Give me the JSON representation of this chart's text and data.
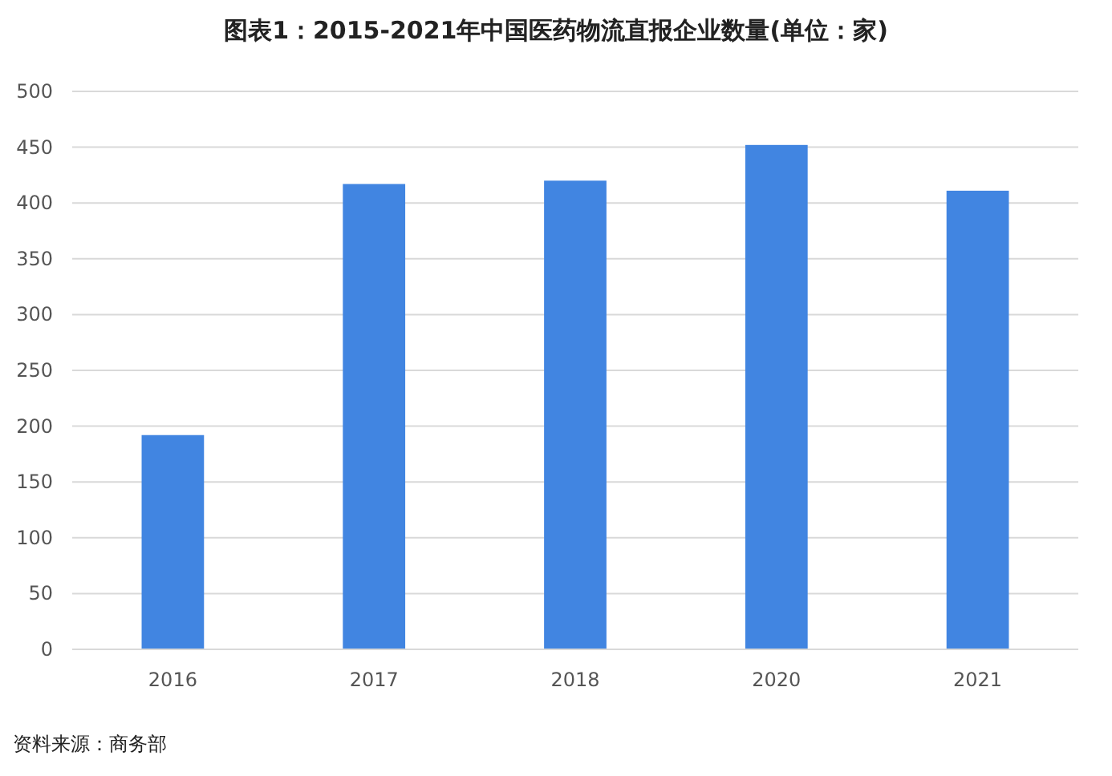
{
  "chart_data": {
    "type": "bar",
    "title": "图表1：2015-2021年中国医药物流直报企业数量(单位：家)",
    "categories": [
      "2016",
      "2017",
      "2018",
      "2020",
      "2021"
    ],
    "values": [
      192,
      417,
      420,
      452,
      411
    ],
    "color": "#4185e1",
    "ylim": [
      0,
      500
    ],
    "yticks": [
      0,
      50,
      100,
      150,
      200,
      250,
      300,
      350,
      400,
      450,
      500
    ],
    "grid": "y",
    "annotations": [
      "资料来源：商务部"
    ]
  }
}
